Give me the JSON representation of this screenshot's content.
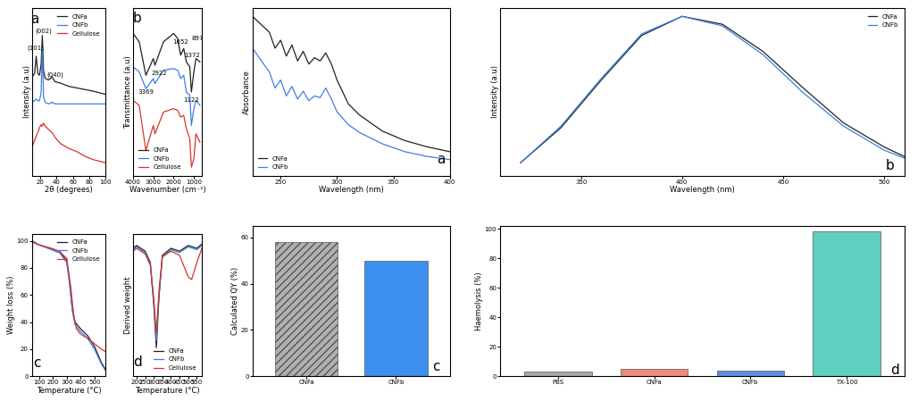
{
  "chart_data": [
    {
      "type": "line",
      "xlabel": "2θ (degrees)",
      "ylabel": "Intensity (a.u)",
      "tick_labels": "x",
      "xlim": [
        10,
        100
      ],
      "ylim": [
        0,
        105
      ],
      "xticks": [
        20,
        40,
        60,
        80,
        100
      ],
      "legend": "upper right",
      "annotations": [
        {
          "text": "a",
          "x": 13,
          "y": 98
        },
        {
          "text": "(101)",
          "x": 14,
          "y": 80
        },
        {
          "text": "(002)",
          "x": 24,
          "y": 91
        },
        {
          "text": "(040)",
          "x": 38,
          "y": 63
        }
      ],
      "series": [
        {
          "name": "CNFa",
          "color": "#222222",
          "x": [
            10,
            13,
            15,
            17,
            19,
            21,
            22.5,
            24,
            26,
            30,
            34.5,
            38,
            45,
            55,
            65,
            75,
            85,
            100
          ],
          "values": [
            62,
            64,
            75,
            64,
            63,
            70,
            88,
            66,
            61,
            60,
            62,
            59,
            58,
            56,
            55,
            54,
            53,
            51
          ]
        },
        {
          "name": "CNFb",
          "color": "#3d7ee8",
          "x": [
            10,
            13,
            15,
            17,
            19,
            21,
            22.5,
            24,
            26,
            30,
            34.5,
            38,
            45,
            55,
            65,
            75,
            85,
            100
          ],
          "values": [
            46,
            47,
            48,
            47,
            47,
            52,
            80,
            49,
            46,
            45,
            46,
            45,
            45,
            45,
            45,
            45,
            45,
            45
          ]
        },
        {
          "name": "Cellulose",
          "color": "#d9352a",
          "x": [
            10,
            13,
            15,
            17,
            19,
            21,
            22.5,
            24,
            26,
            30,
            34.5,
            38,
            45,
            55,
            65,
            75,
            85,
            100
          ],
          "values": [
            18,
            22,
            25,
            27,
            30,
            32,
            31,
            33,
            31,
            29,
            27,
            24,
            20,
            17,
            15,
            12,
            10,
            8
          ]
        }
      ]
    },
    {
      "type": "line",
      "xlabel": "Wavenumber (cm⁻¹)",
      "ylabel": "Transmittance (a.u)",
      "tick_labels": "x",
      "xlim": [
        4000,
        600
      ],
      "ylim": [
        0,
        100
      ],
      "xticks": [
        4000,
        3000,
        2000,
        1000
      ],
      "legend": "lower left",
      "annotations": [
        {
          "text": "b",
          "x": 3800,
          "y": 94
        },
        {
          "text": "3369",
          "x": 3369,
          "y": 50
        },
        {
          "text": "2922",
          "x": 2700,
          "y": 61
        },
        {
          "text": "1652",
          "x": 1652,
          "y": 80
        },
        {
          "text": "1372",
          "x": 1100,
          "y": 72
        },
        {
          "text": "1122",
          "x": 1122,
          "y": 45
        },
        {
          "text": "897",
          "x": 800,
          "y": 82
        }
      ],
      "series": [
        {
          "name": "CNFa",
          "color": "#222222",
          "x": [
            4000,
            3700,
            3369,
            3000,
            2922,
            2500,
            2000,
            1800,
            1652,
            1500,
            1372,
            1200,
            1122,
            1000,
            897,
            700
          ],
          "values": [
            85,
            80,
            60,
            70,
            66,
            80,
            85,
            82,
            72,
            76,
            68,
            65,
            50,
            62,
            70,
            68
          ]
        },
        {
          "name": "CNFb",
          "color": "#3d7ee8",
          "x": [
            4000,
            3700,
            3369,
            3000,
            2922,
            2500,
            2000,
            1800,
            1652,
            1500,
            1372,
            1200,
            1122,
            1000,
            897,
            700
          ],
          "values": [
            65,
            62,
            52,
            58,
            55,
            63,
            64,
            63,
            58,
            60,
            50,
            48,
            30,
            40,
            45,
            42
          ]
        },
        {
          "name": "Cellulose",
          "color": "#d9352a",
          "x": [
            4000,
            3700,
            3369,
            3000,
            2922,
            2500,
            2000,
            1800,
            1652,
            1500,
            1372,
            1200,
            1122,
            1000,
            897,
            700
          ],
          "values": [
            45,
            42,
            15,
            30,
            25,
            38,
            40,
            39,
            35,
            36,
            28,
            22,
            5,
            10,
            25,
            20
          ]
        }
      ]
    },
    {
      "type": "line",
      "xlabel": "Temperature (°C)",
      "ylabel": "Weight loss (%)",
      "xlim": [
        50,
        580
      ],
      "ylim": [
        0,
        105
      ],
      "xticks": [
        100,
        200,
        300,
        400,
        500
      ],
      "yticks": [
        0,
        20,
        40,
        60,
        80,
        100
      ],
      "legend": "upper right",
      "annotations": [
        {
          "text": "c",
          "x": 85,
          "y": 10
        }
      ],
      "series": [
        {
          "name": "CNFa",
          "color": "#222222",
          "x": [
            50,
            100,
            200,
            250,
            300,
            320,
            340,
            360,
            400,
            450,
            500,
            550,
            580
          ],
          "values": [
            100,
            97,
            94,
            92,
            85,
            70,
            50,
            40,
            35,
            30,
            22,
            10,
            5
          ]
        },
        {
          "name": "CNFb",
          "color": "#3d7ee8",
          "x": [
            50,
            100,
            200,
            250,
            300,
            320,
            340,
            360,
            400,
            450,
            500,
            550,
            580
          ],
          "values": [
            100,
            97,
            93,
            91,
            84,
            68,
            48,
            38,
            33,
            28,
            20,
            9,
            4
          ]
        },
        {
          "name": "Cellulose",
          "color": "#d9352a",
          "x": [
            50,
            100,
            200,
            250,
            300,
            330,
            350,
            370,
            400,
            450,
            500,
            550,
            580
          ],
          "values": [
            99,
            97,
            94,
            92,
            87,
            65,
            45,
            35,
            31,
            28,
            24,
            20,
            18
          ]
        }
      ]
    },
    {
      "type": "line",
      "xlabel": "Temperature (°C)",
      "ylabel": "Derived weight",
      "tick_labels": "x",
      "xlim": [
        180,
        580
      ],
      "ylim": [
        0,
        100
      ],
      "xticks": [
        200,
        250,
        300,
        350,
        400,
        450,
        500,
        550
      ],
      "legend": "lower right",
      "annotations": [
        {
          "text": "d",
          "x": 205,
          "y": 10
        }
      ],
      "series": [
        {
          "name": "CNFa",
          "color": "#222222",
          "x": [
            180,
            200,
            250,
            280,
            300,
            315,
            330,
            350,
            400,
            450,
            500,
            550,
            580
          ],
          "values": [
            90,
            92,
            88,
            80,
            50,
            20,
            55,
            85,
            90,
            88,
            92,
            90,
            93
          ]
        },
        {
          "name": "CNFb",
          "color": "#3d7ee8",
          "x": [
            180,
            200,
            250,
            280,
            300,
            315,
            330,
            350,
            400,
            450,
            500,
            550,
            580
          ],
          "values": [
            89,
            91,
            87,
            79,
            52,
            25,
            57,
            84,
            89,
            87,
            91,
            89,
            92
          ]
        },
        {
          "name": "Cellulose",
          "color": "#d9352a",
          "x": [
            180,
            200,
            250,
            280,
            300,
            315,
            330,
            350,
            400,
            450,
            500,
            520,
            550,
            580
          ],
          "values": [
            88,
            90,
            86,
            78,
            55,
            30,
            60,
            84,
            88,
            85,
            70,
            68,
            80,
            90
          ]
        }
      ]
    },
    {
      "type": "line",
      "xlabel": "Wavelength (nm)",
      "ylabel": "Absorbance",
      "tick_labels": "x",
      "xlim": [
        225,
        400
      ],
      "ylim": [
        0,
        105
      ],
      "xticks": [
        250,
        300,
        350,
        400
      ],
      "legend": "lower left",
      "annotations": [
        {
          "text": "a",
          "x": 392,
          "y": 10
        }
      ],
      "series": [
        {
          "name": "CNFa",
          "color": "#222222",
          "x": [
            225,
            240,
            245,
            250,
            255,
            260,
            265,
            270,
            275,
            280,
            285,
            290,
            295,
            300,
            310,
            320,
            340,
            360,
            380,
            400
          ],
          "values": [
            100,
            90,
            80,
            85,
            75,
            82,
            72,
            78,
            70,
            74,
            72,
            77,
            70,
            60,
            45,
            38,
            28,
            22,
            18,
            15
          ]
        },
        {
          "name": "CNFb",
          "color": "#3d7ee8",
          "x": [
            225,
            240,
            245,
            250,
            255,
            260,
            265,
            270,
            275,
            280,
            285,
            290,
            295,
            300,
            310,
            320,
            340,
            360,
            380,
            400
          ],
          "values": [
            80,
            65,
            55,
            60,
            50,
            56,
            48,
            53,
            47,
            50,
            49,
            55,
            48,
            40,
            32,
            27,
            20,
            15,
            12,
            10
          ]
        }
      ]
    },
    {
      "type": "line",
      "xlabel": "Wavelength (nm)",
      "ylabel": "Intensity (a.u)",
      "tick_labels": "x",
      "xlim": [
        310,
        510
      ],
      "ylim": [
        0,
        105
      ],
      "xticks": [
        350,
        400,
        450,
        500
      ],
      "legend": "upper right",
      "annotations": [
        {
          "text": "b",
          "x": 503,
          "y": 6
        }
      ],
      "series": [
        {
          "name": "CNFa",
          "color": "#222222",
          "x": [
            320,
            340,
            360,
            380,
            400,
            420,
            440,
            460,
            480,
            500,
            510
          ],
          "values": [
            8,
            30,
            60,
            88,
            100,
            95,
            78,
            55,
            33,
            18,
            12
          ]
        },
        {
          "name": "CNFb",
          "color": "#3d7ee8",
          "x": [
            320,
            340,
            360,
            380,
            400,
            420,
            440,
            460,
            480,
            500,
            510
          ],
          "values": [
            8,
            31,
            61,
            89,
            100,
            94,
            76,
            52,
            31,
            16,
            11
          ]
        }
      ]
    },
    {
      "type": "bar",
      "ylabel": "Calculated QY (%)",
      "categories": [
        "CNFa",
        "CNFb"
      ],
      "values": [
        58,
        50
      ],
      "colors": [
        "#b0b0b0",
        "#3d8ff0"
      ],
      "ylim": [
        0,
        65
      ],
      "yticks": [
        0,
        20,
        40,
        60
      ],
      "annotations": [
        {
          "text": "c",
          "x": 1.45,
          "y": 4
        }
      ]
    },
    {
      "type": "bar",
      "ylabel": "Haemolysis (%)",
      "categories": [
        "PBS",
        "CNFa",
        "CNFb",
        "TX-100"
      ],
      "values": [
        3,
        5,
        4,
        98
      ],
      "colors": [
        "#a8a8a8",
        "#f08a7a",
        "#5b8fe8",
        "#5fcfc0"
      ],
      "ylim": [
        0,
        102
      ],
      "yticks": [
        0,
        20,
        40,
        60,
        80,
        100
      ],
      "annotations": [
        {
          "text": "d",
          "x": 3.5,
          "y": 4
        }
      ]
    }
  ]
}
